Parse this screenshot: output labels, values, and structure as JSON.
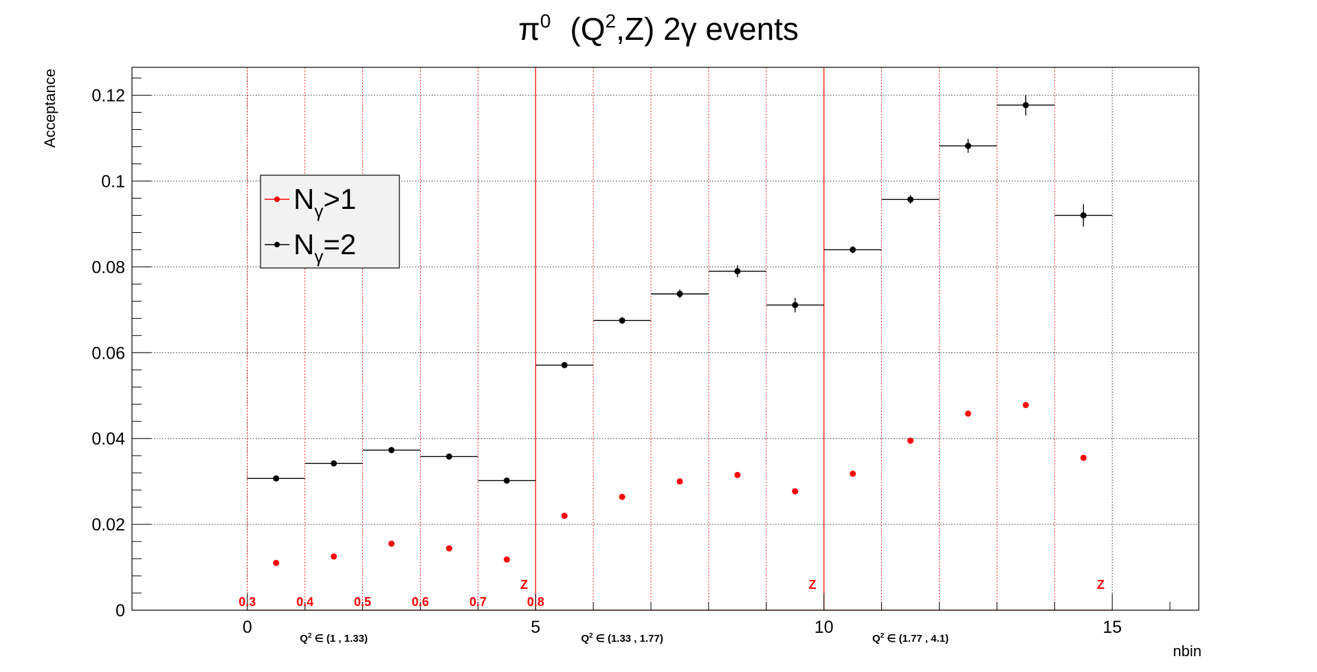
{
  "chart_data": {
    "type": "scatter",
    "title_parts": {
      "pi": "π",
      "pi_sup": "0",
      "q": "(Q",
      "q_sup": "2",
      "rest": ",Z) 2γ events"
    },
    "xlabel": "nbin",
    "ylabel": "Acceptance",
    "xlim": [
      -2,
      16.5
    ],
    "ylim": [
      0,
      0.1265
    ],
    "x_ticks": [
      0,
      5,
      10,
      15
    ],
    "y_ticks": [
      0,
      0.02,
      0.04,
      0.06,
      0.08,
      0.1,
      0.12
    ],
    "y_tick_labels": [
      "0",
      "0.02",
      "0.04",
      "0.06",
      "0.08",
      "0.1",
      "0.12"
    ],
    "grid": true,
    "legend": {
      "position": "left-middle",
      "entries": [
        {
          "series": 0,
          "base": "N",
          "sub": "γ",
          "tail": ">1"
        },
        {
          "series": 1,
          "base": "N",
          "sub": "γ",
          "tail": "=2"
        }
      ]
    },
    "series": [
      {
        "name": "Nγ>1",
        "color": "#ff0000",
        "x": [
          0.5,
          1.5,
          2.5,
          3.5,
          4.5,
          5.5,
          6.5,
          7.5,
          8.5,
          9.5,
          10.5,
          11.5,
          12.5,
          13.5,
          14.5
        ],
        "y": [
          0.011,
          0.0125,
          0.0155,
          0.0144,
          0.0118,
          0.022,
          0.0264,
          0.03,
          0.0315,
          0.0277,
          0.0318,
          0.0395,
          0.0458,
          0.0478,
          0.0355
        ]
      },
      {
        "name": "Nγ=2",
        "color": "#000000",
        "x": [
          0.5,
          1.5,
          2.5,
          3.5,
          4.5,
          5.5,
          6.5,
          7.5,
          8.5,
          9.5,
          10.5,
          11.5,
          12.5,
          13.5,
          14.5
        ],
        "y": [
          0.0307,
          0.0342,
          0.0373,
          0.0358,
          0.0302,
          0.0571,
          0.0675,
          0.0737,
          0.079,
          0.0711,
          0.084,
          0.0957,
          0.1082,
          0.1177,
          0.092
        ],
        "yerr": [
          0.0004,
          0.0004,
          0.0005,
          0.0006,
          0.0007,
          0.0005,
          0.0008,
          0.001,
          0.0014,
          0.0017,
          0.0008,
          0.001,
          0.0016,
          0.0024,
          0.0026
        ],
        "xerr": 0.5
      }
    ],
    "red_grid_x": [
      0,
      1,
      2,
      3,
      4,
      6,
      7,
      8,
      9,
      11,
      12,
      13,
      14
    ],
    "red_boundaries_x": [
      5,
      10
    ],
    "z_bin_labels": [
      {
        "x": 0,
        "text": "0.3"
      },
      {
        "x": 1,
        "text": "0.4"
      },
      {
        "x": 2,
        "text": "0.5"
      },
      {
        "x": 3,
        "text": "0.6"
      },
      {
        "x": 4,
        "text": "0.7"
      },
      {
        "x": 5,
        "text": "0.8"
      }
    ],
    "z_markers": [
      {
        "x": 4.8,
        "text": "Z"
      },
      {
        "x": 9.8,
        "text": "Z"
      },
      {
        "x": 14.8,
        "text": "Z"
      }
    ],
    "q2_ranges": [
      {
        "x": 1.5,
        "prefix": "Q",
        "sup": "2",
        "text": " ∈ (1 , 1.33)"
      },
      {
        "x": 6.5,
        "prefix": "Q",
        "sup": "2",
        "text": " ∈ (1.33 , 1.77)"
      },
      {
        "x": 11.5,
        "prefix": "Q",
        "sup": "2",
        "text": " ∈ (1.77 , 4.1)"
      }
    ]
  }
}
